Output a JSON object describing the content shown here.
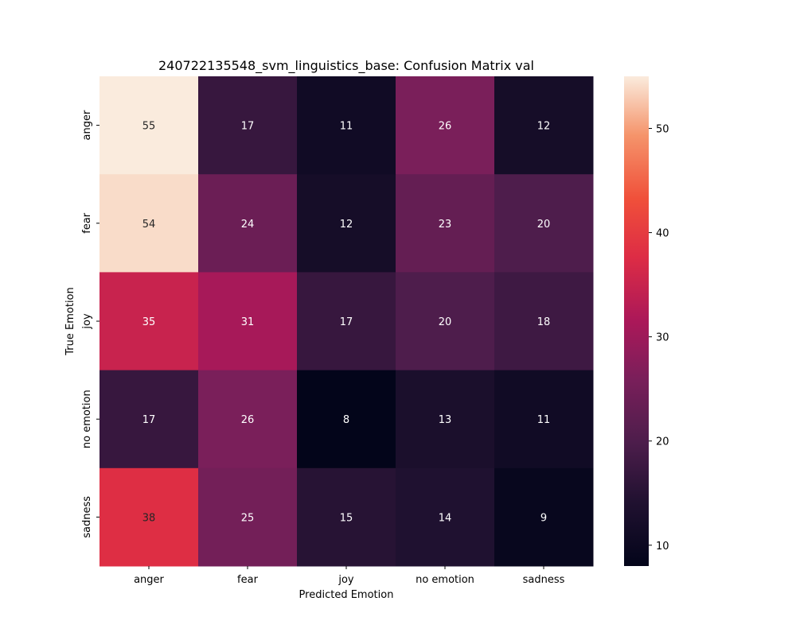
{
  "chart_data": {
    "type": "heatmap",
    "title": "240722135548_svm_linguistics_base: Confusion Matrix val",
    "xlabel": "Predicted Emotion",
    "ylabel": "True Emotion",
    "x_categories": [
      "anger",
      "fear",
      "joy",
      "no emotion",
      "sadness"
    ],
    "y_categories": [
      "anger",
      "fear",
      "joy",
      "no emotion",
      "sadness"
    ],
    "values": [
      [
        55,
        17,
        11,
        26,
        12
      ],
      [
        54,
        24,
        12,
        23,
        20
      ],
      [
        35,
        31,
        17,
        20,
        18
      ],
      [
        17,
        26,
        8,
        13,
        11
      ],
      [
        38,
        25,
        15,
        14,
        9
      ]
    ],
    "colorbar": {
      "min": 8,
      "max": 55,
      "ticks": [
        10,
        20,
        30,
        40,
        50
      ]
    },
    "colormap": "rocket",
    "grid": false,
    "legend": "none"
  }
}
